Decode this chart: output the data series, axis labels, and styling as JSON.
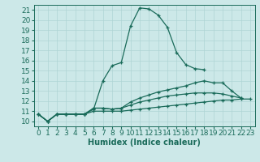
{
  "bg_color": "#cce8e8",
  "line_color": "#1a6b5a",
  "grid_color": "#afd4d4",
  "xlabel": "Humidex (Indice chaleur)",
  "xlabel_fontsize": 7,
  "tick_fontsize": 6.5,
  "xlim": [
    -0.5,
    23.5
  ],
  "ylim": [
    9.5,
    21.5
  ],
  "yticks": [
    10,
    11,
    12,
    13,
    14,
    15,
    16,
    17,
    18,
    19,
    20,
    21
  ],
  "xticks": [
    0,
    1,
    2,
    3,
    4,
    5,
    6,
    7,
    8,
    9,
    10,
    11,
    12,
    13,
    14,
    15,
    16,
    17,
    18,
    19,
    20,
    21,
    22,
    23
  ],
  "series": [
    {
      "comment": "big peak curve - goes up to ~21 at x=11-12, then down",
      "x": [
        0,
        1,
        2,
        3,
        4,
        5,
        6,
        7,
        8,
        9,
        10,
        11,
        12,
        13,
        14,
        15,
        16,
        17,
        18
      ],
      "y": [
        10.7,
        10.0,
        10.7,
        10.7,
        10.7,
        10.7,
        11.2,
        14.0,
        15.5,
        15.8,
        19.4,
        21.2,
        21.1,
        20.5,
        19.3,
        16.8,
        15.6,
        15.2,
        15.1
      ]
    },
    {
      "comment": "second curve - moderate rise to ~13.8 at x=18-19, then slight peak at x=20 ~13.8, down to 13.0 at 21-22",
      "x": [
        0,
        1,
        2,
        3,
        4,
        5,
        6,
        7,
        8,
        9,
        10,
        11,
        12,
        13,
        14,
        15,
        16,
        17,
        18,
        19,
        20,
        21,
        22
      ],
      "y": [
        10.7,
        10.0,
        10.7,
        10.7,
        10.7,
        10.7,
        11.3,
        11.3,
        11.2,
        11.3,
        11.9,
        12.3,
        12.6,
        12.9,
        13.1,
        13.3,
        13.5,
        13.8,
        14.0,
        13.8,
        13.8,
        13.0,
        12.3
      ]
    },
    {
      "comment": "third curve - gradual rise to ~12.5 at x=19-20, then slight down",
      "x": [
        0,
        1,
        2,
        3,
        4,
        5,
        6,
        7,
        8,
        9,
        10,
        11,
        12,
        13,
        14,
        15,
        16,
        17,
        18,
        19,
        20,
        21,
        22
      ],
      "y": [
        10.7,
        10.0,
        10.7,
        10.7,
        10.7,
        10.7,
        11.3,
        11.3,
        11.2,
        11.3,
        11.6,
        11.9,
        12.1,
        12.3,
        12.5,
        12.6,
        12.7,
        12.8,
        12.8,
        12.8,
        12.7,
        12.5,
        12.3
      ]
    },
    {
      "comment": "fourth straight line - very slight rise from ~10.7 at x=0 to ~12.3 at x=23",
      "x": [
        0,
        1,
        2,
        3,
        4,
        5,
        6,
        7,
        8,
        9,
        10,
        11,
        12,
        13,
        14,
        15,
        16,
        17,
        18,
        19,
        20,
        21,
        22,
        23
      ],
      "y": [
        10.7,
        10.0,
        10.7,
        10.7,
        10.7,
        10.7,
        11.0,
        11.0,
        11.0,
        11.0,
        11.1,
        11.2,
        11.3,
        11.4,
        11.5,
        11.6,
        11.7,
        11.8,
        11.9,
        12.0,
        12.1,
        12.1,
        12.2,
        12.2
      ]
    }
  ]
}
